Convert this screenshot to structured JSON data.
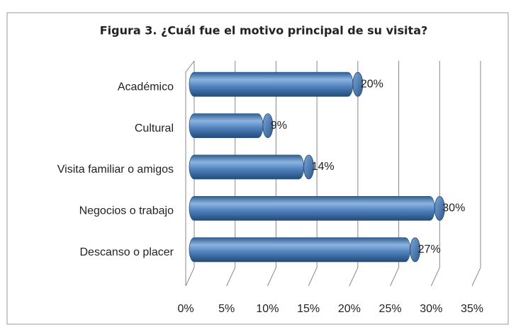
{
  "chart_data": {
    "type": "bar3d_horizontal",
    "title": "Figura 3. ¿Cuál fue el motivo principal de su visita?",
    "categories": [
      "Académico",
      "Cultural",
      "Visita familiar o amigos",
      "Negocios o trabajo",
      "Descanso o placer"
    ],
    "values": [
      20,
      9,
      14,
      30,
      27
    ],
    "value_labels": [
      "20%",
      "9%",
      "14%",
      "30%",
      "27%"
    ],
    "color": "#4f81bd",
    "xlim": [
      0,
      35
    ],
    "xticks": [
      {
        "value": 0,
        "label": "0%"
      },
      {
        "value": 5,
        "label": "5%"
      },
      {
        "value": 10,
        "label": "10%"
      },
      {
        "value": 15,
        "label": "15%"
      },
      {
        "value": 20,
        "label": "20%"
      },
      {
        "value": 25,
        "label": "25%"
      },
      {
        "value": 30,
        "label": "30%"
      },
      {
        "value": 35,
        "label": "35%"
      }
    ],
    "grid": true
  }
}
